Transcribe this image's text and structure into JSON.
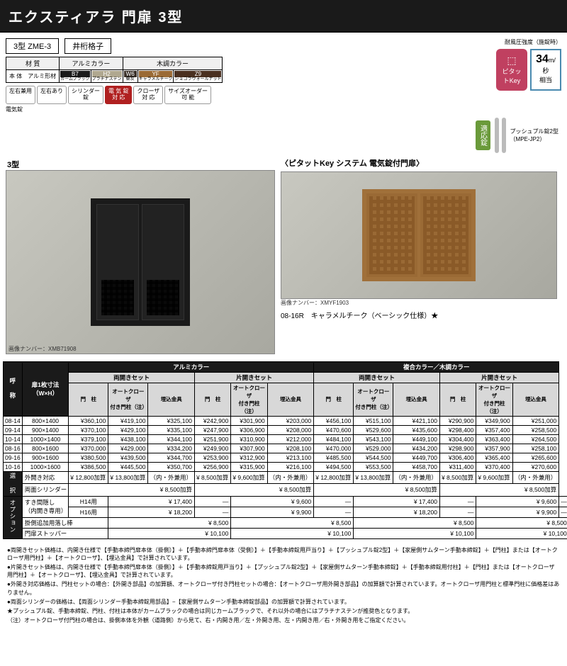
{
  "title": "エクスティアラ 門扉 3型",
  "model": {
    "code": "3型 ZME-3",
    "style": "井桁格子"
  },
  "materialTable": {
    "headers": [
      "材 質",
      "アルミカラー",
      "",
      "木調カラー",
      "",
      ""
    ],
    "row1": [
      "本 体",
      "アルミ形材"
    ],
    "swatches": [
      {
        "code": "B7",
        "name": "カームブラック",
        "color": "#1a1a1a"
      },
      {
        "code": "H2",
        "name": "プラチナステン",
        "color": "#b0a890"
      },
      {
        "code": "W6",
        "name": "桑炭",
        "color": "#3a3028"
      },
      {
        "code": "YF",
        "name": "キャラメルチーク",
        "color": "#9a6a35"
      },
      {
        "code": "Z9",
        "name": "ショコラウォールナット",
        "color": "#4a3020"
      }
    ]
  },
  "badges": [
    {
      "text": "左右兼用",
      "on": false
    },
    {
      "text": "左右あり",
      "on": false
    },
    {
      "text": "シリンダー\n錠",
      "on": false
    },
    {
      "text": "電 気 錠\n対 応",
      "on": true
    },
    {
      "text": "クローザ\n対 応",
      "on": false
    },
    {
      "text": "サイズオーダー\n可 能",
      "on": false
    }
  ],
  "badgeSub": "電気錠",
  "wind": {
    "label": "耐風圧強度（施錠時）",
    "value": "34",
    "unit": "m/秒",
    "sub": "相当"
  },
  "keyBadge": "ピタットKey",
  "lockBadge": "適応錠",
  "handleLabel": "プッシュプル錠2型\n（MPE-JP2）",
  "photo1": {
    "label": "3型",
    "imgnum": "画像ナンバー：XMB71908"
  },
  "photo2": {
    "label": "〈ピタットKey システム 電気錠付門扉〉",
    "imgnum": "画像ナンバー：XMYF1903",
    "caption": "08-16R　キャラメルチーク（ベーシック仕様）★"
  },
  "priceTable": {
    "topHeaders": [
      "呼 称",
      "扉1枚寸法\n（W×H）",
      "アルミカラー",
      "複合カラー／木調カラー"
    ],
    "setHeaders": [
      "両開きセット",
      "片開きセット",
      "両開きセット",
      "片開きセット"
    ],
    "colHeaders": [
      "門　柱",
      "オートクローザ\n付き門柱（注）",
      "埋込金具"
    ],
    "rows": [
      {
        "code": "08-14",
        "size": "800×1400",
        "p": [
          "¥360,100",
          "¥419,100",
          "¥325,100",
          "¥242,900",
          "¥301,900",
          "¥203,000",
          "¥456,100",
          "¥515,100",
          "¥421,100",
          "¥290,900",
          "¥349,900",
          "¥251,000"
        ]
      },
      {
        "code": "09-14",
        "size": "900×1400",
        "p": [
          "¥370,100",
          "¥429,100",
          "¥335,100",
          "¥247,900",
          "¥306,900",
          "¥208,000",
          "¥470,600",
          "¥529,600",
          "¥435,600",
          "¥298,400",
          "¥357,400",
          "¥258,500"
        ]
      },
      {
        "code": "10-14",
        "size": "1000×1400",
        "p": [
          "¥379,100",
          "¥438,100",
          "¥344,100",
          "¥251,900",
          "¥310,900",
          "¥212,000",
          "¥484,100",
          "¥543,100",
          "¥449,100",
          "¥304,400",
          "¥363,400",
          "¥264,500"
        ]
      },
      {
        "code": "08-16",
        "size": "800×1600",
        "p": [
          "¥370,000",
          "¥429,000",
          "¥334,200",
          "¥249,900",
          "¥307,900",
          "¥208,100",
          "¥470,000",
          "¥529,000",
          "¥434,200",
          "¥298,900",
          "¥357,900",
          "¥258,100"
        ]
      },
      {
        "code": "09-16",
        "size": "900×1600",
        "p": [
          "¥380,500",
          "¥439,500",
          "¥344,700",
          "¥253,900",
          "¥312,900",
          "¥213,100",
          "¥485,500",
          "¥544,500",
          "¥449,700",
          "¥306,400",
          "¥365,400",
          "¥265,600"
        ]
      },
      {
        "code": "10-16",
        "size": "1000×1600",
        "p": [
          "¥386,500",
          "¥445,500",
          "¥350,700",
          "¥256,900",
          "¥315,900",
          "¥216,100",
          "¥494,500",
          "¥553,500",
          "¥458,700",
          "¥311,400",
          "¥370,400",
          "¥270,600"
        ]
      }
    ],
    "selectRow": {
      "label": "選 択",
      "r1": [
        "外開き対応",
        "¥ 12,800加算",
        "¥ 13,800加算",
        "（内・外兼用）",
        "¥  8,500加算",
        "¥  9,600加算",
        "（内・外兼用）",
        "¥ 12,800加算",
        "¥ 13,800加算",
        "（内・外兼用）",
        "¥  8,500加算",
        "¥  9,600加算",
        "（内・外兼用）"
      ],
      "r2": [
        "両面シリンダー",
        "¥  8,500加算",
        "¥  8,500加算",
        "¥  8,500加算",
        "¥  8,500加算"
      ]
    },
    "optionRows": {
      "label": "オプション",
      "rows": [
        {
          "name": "すき間隠し\n（内開き専用）",
          "sub": "H14用",
          "v": [
            "¥  17,400",
            "—",
            "¥   9,600",
            "—",
            "¥  17,400",
            "—",
            "¥   9,600",
            "—"
          ]
        },
        {
          "name": "",
          "sub": "H16用",
          "v": [
            "¥  18,200",
            "—",
            "¥   9,900",
            "—",
            "¥  18,200",
            "—",
            "¥   9,900",
            "—"
          ]
        },
        {
          "name": "掛側追加用落し棒",
          "sub": "",
          "v": [
            "¥   8,500",
            "",
            "¥   8,500",
            "",
            "¥   8,500",
            "",
            "¥   8,500",
            ""
          ]
        },
        {
          "name": "門扉ストッパー",
          "sub": "",
          "v": [
            "¥  10,100",
            "",
            "¥  10,100",
            "",
            "¥  10,100",
            "",
            "¥  10,100",
            ""
          ]
        }
      ]
    }
  },
  "notes": [
    "●両開きセット価格は、内開き仕様で【手動本締門扉本体（掛側）】＋【手動本締門扉本体（受側）】＋【手動本締錠用戸当り】＋【プッシュプル錠2型】＋【家屋側サムターン手動本締錠】＋【門柱】または【オートクローザ用門柱】＋【オートクローザ】、【埋込金具】で計算されています。",
    "●片開きセット価格は、内開き仕様で【手動本締門扉本体（掛側）】＋【手動本締錠用戸当り】＋【プッシュプル錠2型】＋【家屋側サムターン手動本締錠】＋【手動本締錠用付柱】＋【門柱】または【オートクローザ用門柱】＋【オートクローザ】、【埋込金具】で計算されています。",
    "●外開き対応価格は、門柱セットの場合：【外開き部品】の加算額、オートクローザ付き門柱セットの場合：【オートクローザ用外開き部品】の加算額で計算されています。オートクローザ用門柱と標準門柱に価格差はありません。",
    "●両面シリンダーの価格は、【両面シリンダー手動本締錠用部品】−【家屋側サムターン手動本締錠部品】の加算額で計算されています。",
    "★プッシュプル錠、手動本締錠、門柱、付柱は本体がカームブラックの場合は同じカームブラックで、それ以外の場合にはプラチナステンが推奨色となります。",
    "（注）オートクローザ付門柱の場合は、掛側本体を外観（道路側）から見て、右・内開き用／左・外開き用、左・内開き用／右・外開き用をご指定ください。"
  ]
}
